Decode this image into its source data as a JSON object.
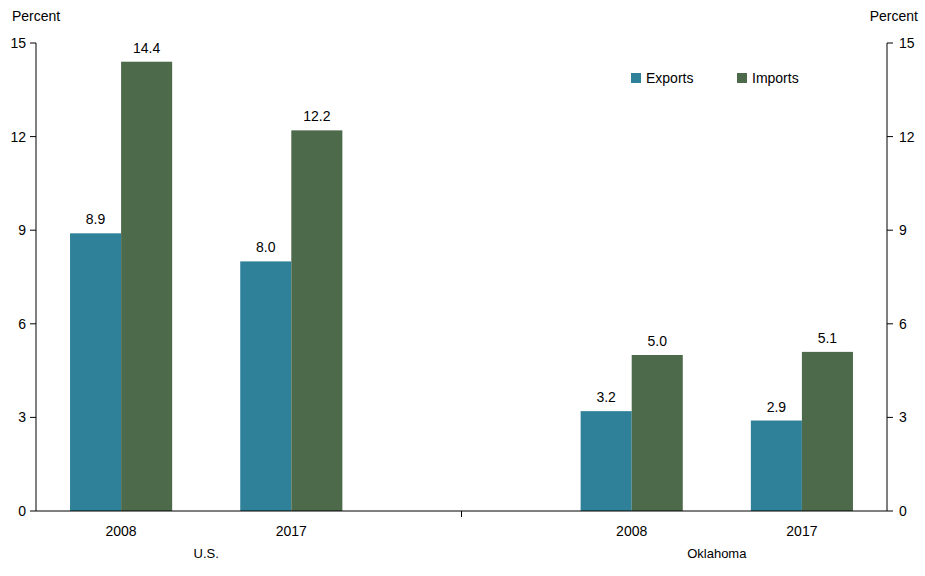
{
  "chart_data": {
    "type": "bar",
    "y_label": "Percent",
    "y2_label": "Percent",
    "categories": [
      "2008",
      "2017",
      "2008",
      "2017"
    ],
    "groups": [
      "U.S.",
      "Oklahoma"
    ],
    "series": [
      {
        "name": "Exports",
        "color": "#2e8199",
        "values": [
          8.9,
          8.0,
          3.2,
          2.9
        ],
        "value_labels": [
          "8.9",
          "8.0",
          "3.2",
          "2.9"
        ]
      },
      {
        "name": "Imports",
        "color": "#4d6a4a",
        "values": [
          14.4,
          12.2,
          5.0,
          5.1
        ],
        "value_labels": [
          "14.4",
          "12.2",
          "5.0",
          "5.1"
        ]
      }
    ],
    "ylim": [
      0,
      15
    ],
    "yticks": [
      0,
      3,
      6,
      9,
      12,
      15
    ],
    "y2lim": [
      0,
      15
    ],
    "y2ticks": [
      0,
      3,
      6,
      9,
      12,
      15
    ],
    "data_labels": true,
    "legend": "top-right",
    "grid": false
  }
}
